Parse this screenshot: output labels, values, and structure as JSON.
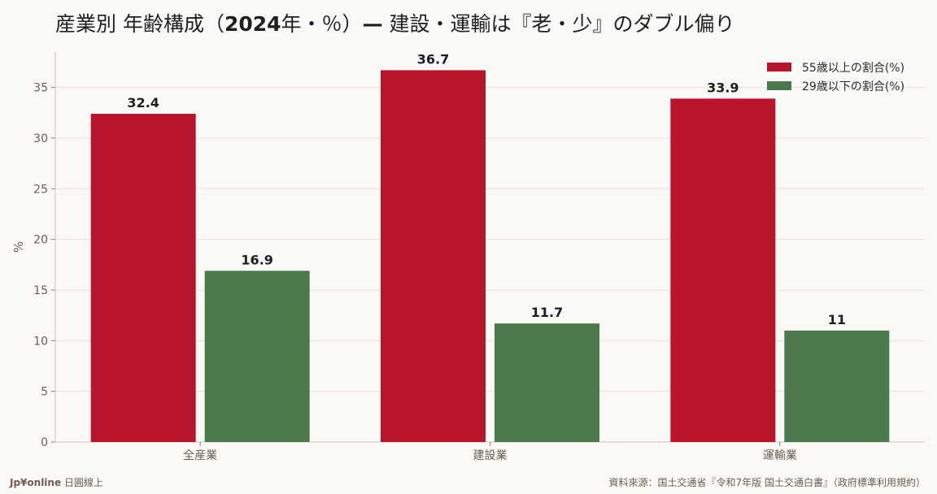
{
  "title": {
    "part1": "産業別 年齢構成（",
    "part_bold": "2024",
    "part2": "年・％）",
    "part_dash": "—",
    "part3": " 建設・運輸は『老・少』のダブル偏り"
  },
  "footer": {
    "brand": "Jp¥online",
    "brand_suffix": " 日圓線上",
    "source": "資料來源：国土交通省『令和7年版 国土交通白書』（政府標準利用規約）"
  },
  "chart_data": {
    "type": "bar",
    "categories": [
      "全産業",
      "建設業",
      "運輸業"
    ],
    "series": [
      {
        "name": "55歳以上の割合(%)",
        "values": [
          32.4,
          36.7,
          33.9
        ],
        "color": "#b8142c"
      },
      {
        "name": "29歳以下の割合(%)",
        "values": [
          16.9,
          11.7,
          11
        ],
        "color": "#4a7a4b"
      }
    ],
    "ylabel": "%",
    "xlabel": "",
    "ylim": [
      0,
      38.5
    ],
    "yticks": [
      0,
      5,
      10,
      15,
      20,
      25,
      30,
      35
    ],
    "grid": true,
    "legend": "top-right"
  }
}
